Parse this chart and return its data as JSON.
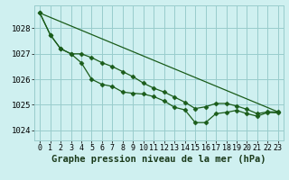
{
  "background_color": "#cff0f0",
  "grid_color": "#99cccc",
  "line_color": "#1a5c1a",
  "marker_color": "#1a5c1a",
  "xlabel": "Graphe pression niveau de la mer (hPa)",
  "xlabel_fontsize": 7.5,
  "ylabel_fontsize": 6.5,
  "tick_fontsize": 6.0,
  "ylim": [
    1023.6,
    1028.9
  ],
  "xlim": [
    -0.5,
    23.5
  ],
  "yticks": [
    1024,
    1025,
    1026,
    1027,
    1028
  ],
  "xticks": [
    0,
    1,
    2,
    3,
    4,
    5,
    6,
    7,
    8,
    9,
    10,
    11,
    12,
    13,
    14,
    15,
    16,
    17,
    18,
    19,
    20,
    21,
    22,
    23
  ],
  "series1_x": [
    0,
    1,
    2,
    3,
    4,
    5,
    6,
    7,
    8,
    9,
    10,
    11,
    12,
    13,
    14,
    15,
    16,
    17,
    18,
    19,
    20,
    21,
    22,
    23
  ],
  "series1_y": [
    1028.6,
    1027.75,
    1027.2,
    1027.0,
    1026.65,
    1026.0,
    1025.8,
    1025.72,
    1025.5,
    1025.45,
    1025.42,
    1025.32,
    1025.15,
    1024.9,
    1024.8,
    1024.3,
    1024.3,
    1024.65,
    1024.7,
    1024.78,
    1024.65,
    1024.55,
    1024.7,
    1024.68
  ],
  "series2_x": [
    0,
    1,
    2,
    3,
    4,
    5,
    6,
    7,
    8,
    9,
    10,
    11,
    12,
    13,
    14,
    15,
    16,
    17,
    18,
    19,
    20,
    21,
    22,
    23
  ],
  "series2_y": [
    1028.6,
    1027.75,
    1027.2,
    1027.0,
    1027.0,
    1026.85,
    1026.65,
    1026.5,
    1026.3,
    1026.1,
    1025.85,
    1025.65,
    1025.5,
    1025.3,
    1025.1,
    1024.85,
    1024.92,
    1025.05,
    1025.05,
    1024.95,
    1024.82,
    1024.65,
    1024.72,
    1024.72
  ],
  "series3_x": [
    0,
    23
  ],
  "series3_y": [
    1028.6,
    1024.72
  ]
}
